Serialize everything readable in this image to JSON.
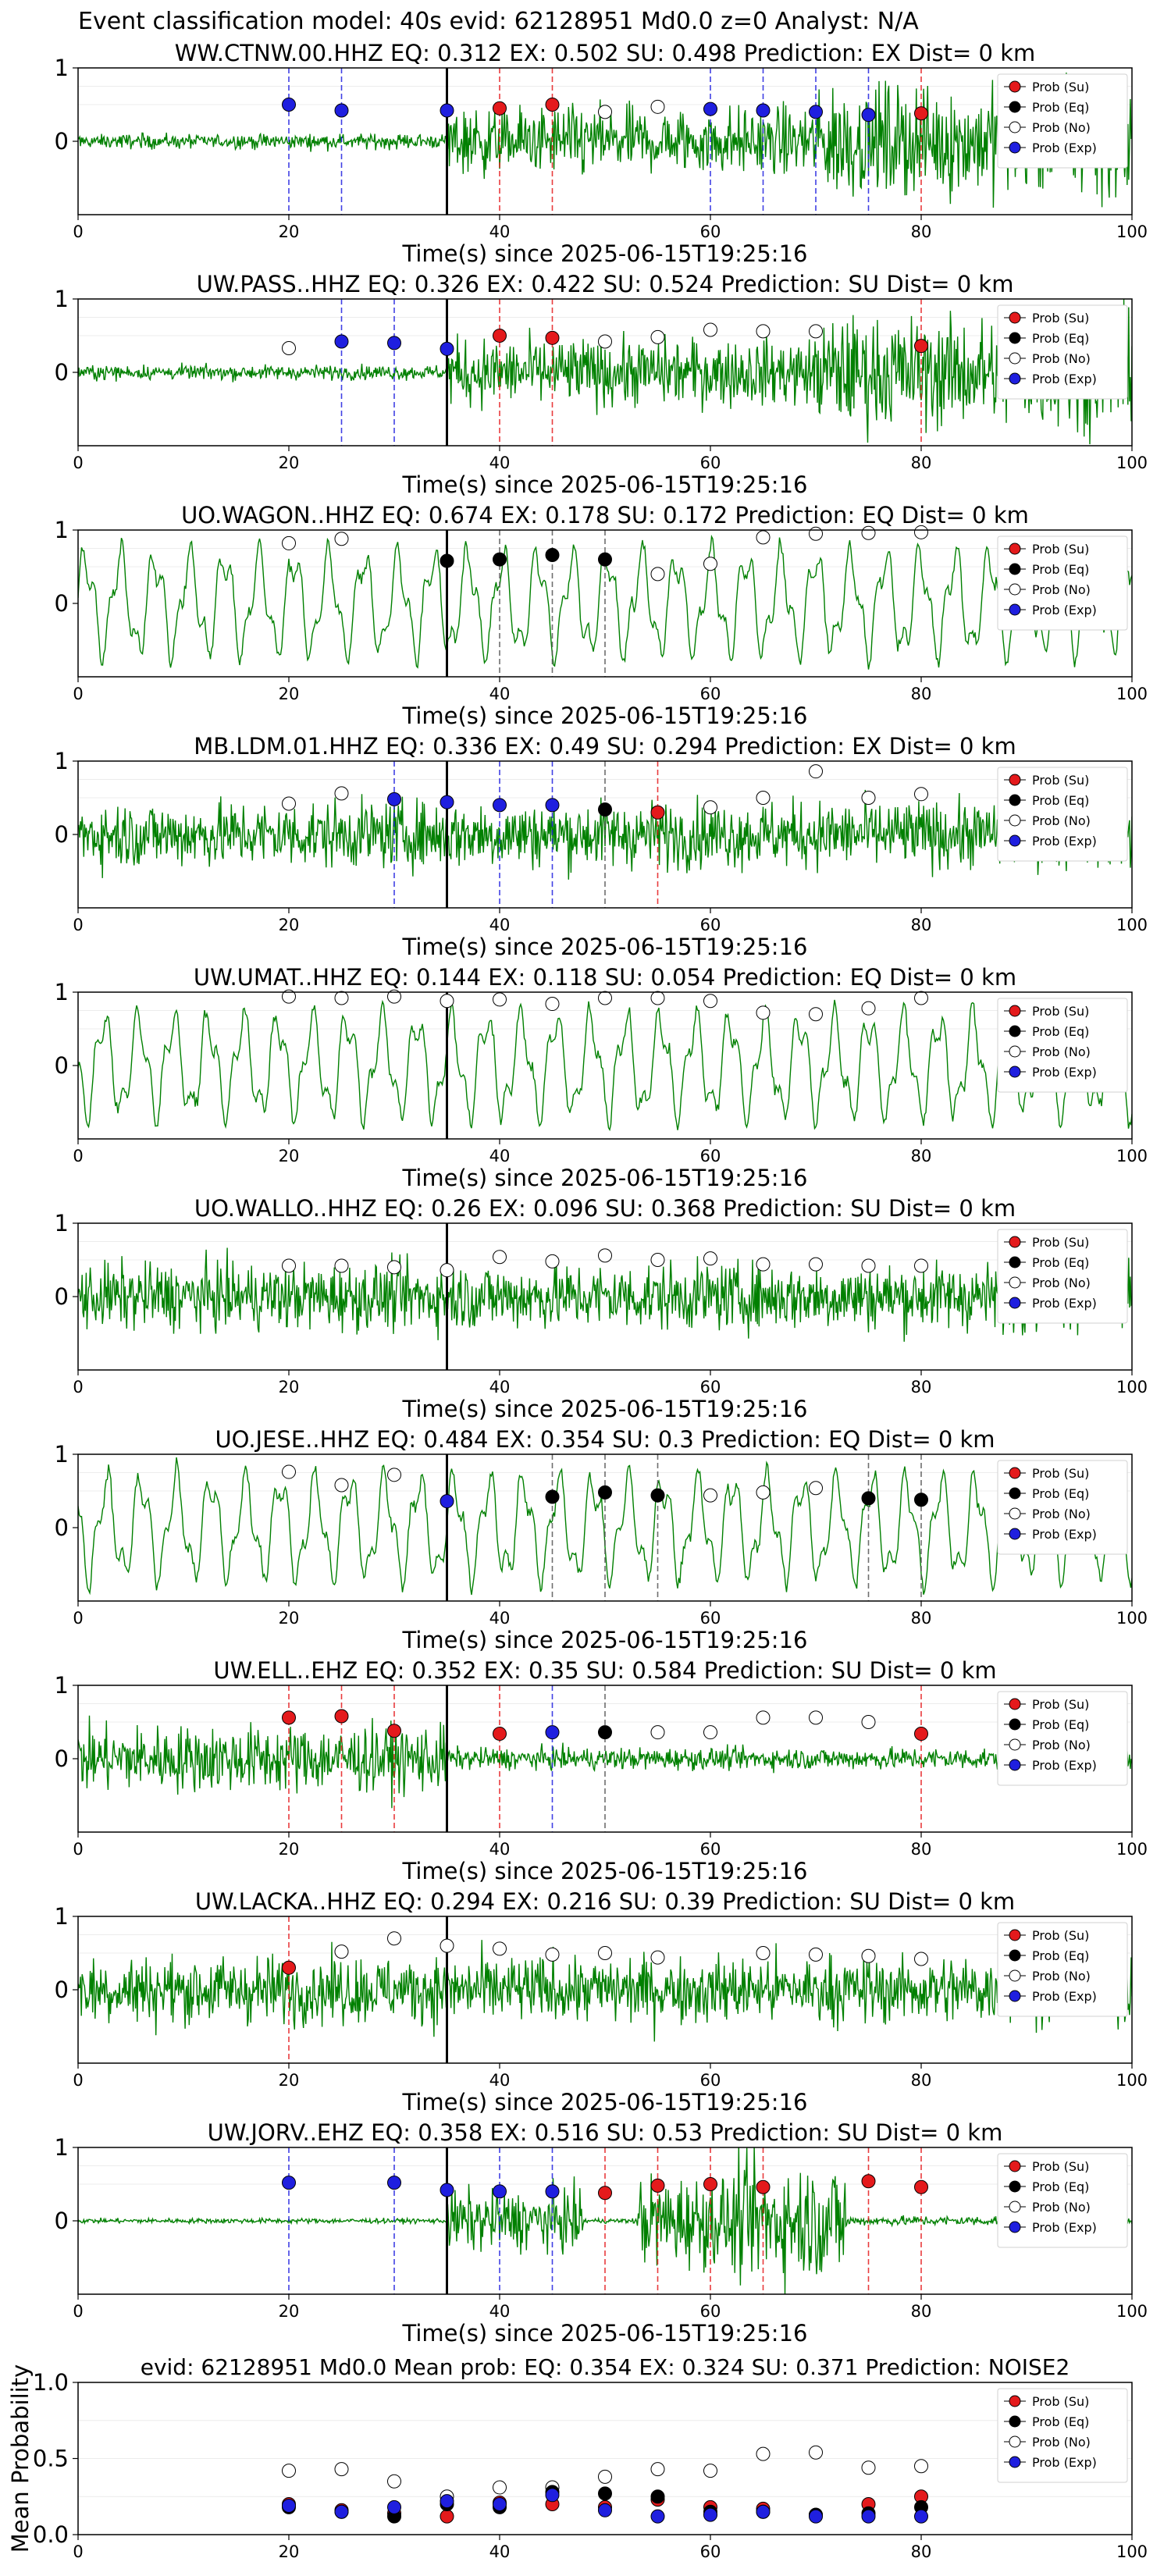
{
  "figure_title": "Event classification model: 40s evid: 62128951 Md0.0 z=0 Analyst: N/A",
  "legend_labels": [
    "Prob (Su)",
    "Prob (Eq)",
    "Prob (No)",
    "Prob (Exp)"
  ],
  "colors": {
    "su": "#e41a1c",
    "eq": "#000000",
    "no": "#ffffff",
    "exp": "#1f1fdf",
    "trace": "#008000"
  },
  "chart_data": [
    {
      "type": "line",
      "title": "WW.CTNW.00.HHZ   EQ: 0.312  EX: 0.502  SU: 0.498   Prediction: EX    Dist= 0 km",
      "xlabel": "Time(s) since 2025-06-15T19:25:16",
      "xlim": [
        0,
        100
      ],
      "ylim": [
        -1,
        1
      ],
      "xticks": [
        "0",
        "20",
        "40",
        "60",
        "80",
        "100"
      ],
      "yticks": [
        "0",
        "1"
      ],
      "trace_style": "noise-burst",
      "p_arrival": 35,
      "points": [
        {
          "x": 20,
          "y": 0.5,
          "cls": "exp"
        },
        {
          "x": 25,
          "y": 0.42,
          "cls": "exp"
        },
        {
          "x": 35,
          "y": 0.42,
          "cls": "exp"
        },
        {
          "x": 40,
          "y": 0.45,
          "cls": "su"
        },
        {
          "x": 45,
          "y": 0.5,
          "cls": "su"
        },
        {
          "x": 50,
          "y": 0.4,
          "cls": "no"
        },
        {
          "x": 55,
          "y": 0.47,
          "cls": "no"
        },
        {
          "x": 60,
          "y": 0.44,
          "cls": "exp"
        },
        {
          "x": 65,
          "y": 0.42,
          "cls": "exp"
        },
        {
          "x": 70,
          "y": 0.4,
          "cls": "exp"
        },
        {
          "x": 75,
          "y": 0.36,
          "cls": "exp"
        },
        {
          "x": 80,
          "y": 0.38,
          "cls": "su"
        }
      ]
    },
    {
      "type": "line",
      "title": "UW.PASS..HHZ   EQ: 0.326  EX: 0.422  SU: 0.524   Prediction: SU    Dist= 0 km",
      "xlabel": "Time(s) since 2025-06-15T19:25:16",
      "xlim": [
        0,
        100
      ],
      "ylim": [
        -1,
        1
      ],
      "xticks": [
        "0",
        "20",
        "40",
        "60",
        "80",
        "100"
      ],
      "yticks": [
        "0",
        "1"
      ],
      "trace_style": "noise-burst",
      "p_arrival": 35,
      "points": [
        {
          "x": 20,
          "y": 0.33,
          "cls": "no"
        },
        {
          "x": 25,
          "y": 0.42,
          "cls": "exp"
        },
        {
          "x": 30,
          "y": 0.4,
          "cls": "exp"
        },
        {
          "x": 35,
          "y": 0.32,
          "cls": "exp"
        },
        {
          "x": 40,
          "y": 0.5,
          "cls": "su"
        },
        {
          "x": 45,
          "y": 0.47,
          "cls": "su"
        },
        {
          "x": 50,
          "y": 0.42,
          "cls": "no"
        },
        {
          "x": 55,
          "y": 0.48,
          "cls": "no"
        },
        {
          "x": 60,
          "y": 0.58,
          "cls": "no"
        },
        {
          "x": 65,
          "y": 0.56,
          "cls": "no"
        },
        {
          "x": 70,
          "y": 0.56,
          "cls": "no"
        },
        {
          "x": 80,
          "y": 0.36,
          "cls": "su"
        }
      ]
    },
    {
      "type": "line",
      "title": "UO.WAGON..HHZ   EQ: 0.674  EX: 0.178  SU: 0.172   Prediction: EQ    Dist= 0 km",
      "xlabel": "Time(s) since 2025-06-15T19:25:16",
      "xlim": [
        0,
        100
      ],
      "ylim": [
        -1,
        1
      ],
      "xticks": [
        "0",
        "20",
        "40",
        "60",
        "80",
        "100"
      ],
      "yticks": [
        "0",
        "1"
      ],
      "trace_style": "oscillation",
      "p_arrival": 35,
      "points": [
        {
          "x": 20,
          "y": 0.82,
          "cls": "no"
        },
        {
          "x": 25,
          "y": 0.88,
          "cls": "no"
        },
        {
          "x": 35,
          "y": 0.58,
          "cls": "eq"
        },
        {
          "x": 40,
          "y": 0.6,
          "cls": "eq"
        },
        {
          "x": 45,
          "y": 0.66,
          "cls": "eq"
        },
        {
          "x": 50,
          "y": 0.6,
          "cls": "eq"
        },
        {
          "x": 55,
          "y": 0.4,
          "cls": "no"
        },
        {
          "x": 60,
          "y": 0.54,
          "cls": "no"
        },
        {
          "x": 65,
          "y": 0.9,
          "cls": "no"
        },
        {
          "x": 70,
          "y": 0.95,
          "cls": "no"
        },
        {
          "x": 75,
          "y": 0.96,
          "cls": "no"
        },
        {
          "x": 80,
          "y": 0.97,
          "cls": "no"
        }
      ]
    },
    {
      "type": "line",
      "title": "MB.LDM.01.HHZ   EQ: 0.336  EX: 0.49  SU: 0.294   Prediction: EX    Dist= 0 km",
      "xlabel": "Time(s) since 2025-06-15T19:25:16",
      "xlim": [
        0,
        100
      ],
      "ylim": [
        -1,
        1
      ],
      "xticks": [
        "0",
        "20",
        "40",
        "60",
        "80",
        "100"
      ],
      "yticks": [
        "0",
        "1"
      ],
      "trace_style": "noise-dense",
      "p_arrival": 35,
      "points": [
        {
          "x": 20,
          "y": 0.42,
          "cls": "no"
        },
        {
          "x": 25,
          "y": 0.56,
          "cls": "no"
        },
        {
          "x": 30,
          "y": 0.48,
          "cls": "exp"
        },
        {
          "x": 35,
          "y": 0.44,
          "cls": "exp"
        },
        {
          "x": 40,
          "y": 0.4,
          "cls": "exp"
        },
        {
          "x": 45,
          "y": 0.4,
          "cls": "exp"
        },
        {
          "x": 50,
          "y": 0.34,
          "cls": "eq"
        },
        {
          "x": 55,
          "y": 0.3,
          "cls": "su"
        },
        {
          "x": 60,
          "y": 0.37,
          "cls": "no"
        },
        {
          "x": 65,
          "y": 0.5,
          "cls": "no"
        },
        {
          "x": 70,
          "y": 0.86,
          "cls": "no"
        },
        {
          "x": 75,
          "y": 0.5,
          "cls": "no"
        },
        {
          "x": 80,
          "y": 0.55,
          "cls": "no"
        }
      ]
    },
    {
      "type": "line",
      "title": "UW.UMAT..HHZ   EQ: 0.144  EX: 0.118  SU: 0.054   Prediction: EQ    Dist= 0 km",
      "xlabel": "Time(s) since 2025-06-15T19:25:16",
      "xlim": [
        0,
        100
      ],
      "ylim": [
        -1,
        1
      ],
      "xticks": [
        "0",
        "20",
        "40",
        "60",
        "80",
        "100"
      ],
      "yticks": [
        "0",
        "1"
      ],
      "trace_style": "oscillation",
      "p_arrival": 35,
      "points": [
        {
          "x": 20,
          "y": 0.94,
          "cls": "no"
        },
        {
          "x": 25,
          "y": 0.92,
          "cls": "no"
        },
        {
          "x": 30,
          "y": 0.94,
          "cls": "no"
        },
        {
          "x": 35,
          "y": 0.88,
          "cls": "no"
        },
        {
          "x": 40,
          "y": 0.9,
          "cls": "no"
        },
        {
          "x": 45,
          "y": 0.84,
          "cls": "no"
        },
        {
          "x": 50,
          "y": 0.92,
          "cls": "no"
        },
        {
          "x": 55,
          "y": 0.92,
          "cls": "no"
        },
        {
          "x": 60,
          "y": 0.88,
          "cls": "no"
        },
        {
          "x": 65,
          "y": 0.72,
          "cls": "no"
        },
        {
          "x": 70,
          "y": 0.7,
          "cls": "no"
        },
        {
          "x": 75,
          "y": 0.78,
          "cls": "no"
        },
        {
          "x": 80,
          "y": 0.92,
          "cls": "no"
        }
      ]
    },
    {
      "type": "line",
      "title": "UO.WALLO..HHZ   EQ: 0.26  EX: 0.096  SU: 0.368   Prediction: SU    Dist= 0 km",
      "xlabel": "Time(s) since 2025-06-15T19:25:16",
      "xlim": [
        0,
        100
      ],
      "ylim": [
        -1,
        1
      ],
      "xticks": [
        "0",
        "20",
        "40",
        "60",
        "80",
        "100"
      ],
      "yticks": [
        "0",
        "1"
      ],
      "trace_style": "noise-dense",
      "p_arrival": 35,
      "points": [
        {
          "x": 20,
          "y": 0.42,
          "cls": "no"
        },
        {
          "x": 25,
          "y": 0.42,
          "cls": "no"
        },
        {
          "x": 30,
          "y": 0.4,
          "cls": "no"
        },
        {
          "x": 35,
          "y": 0.36,
          "cls": "no"
        },
        {
          "x": 40,
          "y": 0.54,
          "cls": "no"
        },
        {
          "x": 45,
          "y": 0.48,
          "cls": "no"
        },
        {
          "x": 50,
          "y": 0.56,
          "cls": "no"
        },
        {
          "x": 55,
          "y": 0.5,
          "cls": "no"
        },
        {
          "x": 60,
          "y": 0.52,
          "cls": "no"
        },
        {
          "x": 65,
          "y": 0.44,
          "cls": "no"
        },
        {
          "x": 70,
          "y": 0.44,
          "cls": "no"
        },
        {
          "x": 75,
          "y": 0.42,
          "cls": "no"
        },
        {
          "x": 80,
          "y": 0.42,
          "cls": "no"
        }
      ]
    },
    {
      "type": "line",
      "title": "UO.JESE..HHZ   EQ: 0.484  EX: 0.354  SU: 0.3   Prediction: EQ    Dist= 0 km",
      "xlabel": "Time(s) since 2025-06-15T19:25:16",
      "xlim": [
        0,
        100
      ],
      "ylim": [
        -1,
        1
      ],
      "xticks": [
        "0",
        "20",
        "40",
        "60",
        "80",
        "100"
      ],
      "yticks": [
        "0",
        "1"
      ],
      "trace_style": "oscillation",
      "p_arrival": 35,
      "points": [
        {
          "x": 20,
          "y": 0.76,
          "cls": "no"
        },
        {
          "x": 25,
          "y": 0.58,
          "cls": "no"
        },
        {
          "x": 30,
          "y": 0.72,
          "cls": "no"
        },
        {
          "x": 35,
          "y": 0.36,
          "cls": "exp"
        },
        {
          "x": 45,
          "y": 0.42,
          "cls": "eq"
        },
        {
          "x": 50,
          "y": 0.48,
          "cls": "eq"
        },
        {
          "x": 55,
          "y": 0.44,
          "cls": "eq"
        },
        {
          "x": 60,
          "y": 0.44,
          "cls": "no"
        },
        {
          "x": 65,
          "y": 0.48,
          "cls": "no"
        },
        {
          "x": 70,
          "y": 0.54,
          "cls": "no"
        },
        {
          "x": 75,
          "y": 0.4,
          "cls": "eq"
        },
        {
          "x": 80,
          "y": 0.38,
          "cls": "eq"
        }
      ]
    },
    {
      "type": "line",
      "title": "UW.ELL..EHZ   EQ: 0.352  EX: 0.35  SU: 0.584   Prediction: SU    Dist= 0 km",
      "xlabel": "Time(s) since 2025-06-15T19:25:16",
      "xlim": [
        0,
        100
      ],
      "ylim": [
        -1,
        1
      ],
      "xticks": [
        "0",
        "20",
        "40",
        "60",
        "80",
        "100"
      ],
      "yticks": [
        "0",
        "1"
      ],
      "trace_style": "noise-front",
      "p_arrival": 35,
      "points": [
        {
          "x": 20,
          "y": 0.56,
          "cls": "su"
        },
        {
          "x": 25,
          "y": 0.58,
          "cls": "su"
        },
        {
          "x": 30,
          "y": 0.38,
          "cls": "su"
        },
        {
          "x": 40,
          "y": 0.34,
          "cls": "su"
        },
        {
          "x": 45,
          "y": 0.36,
          "cls": "exp"
        },
        {
          "x": 50,
          "y": 0.36,
          "cls": "eq"
        },
        {
          "x": 55,
          "y": 0.36,
          "cls": "no"
        },
        {
          "x": 60,
          "y": 0.36,
          "cls": "no"
        },
        {
          "x": 65,
          "y": 0.56,
          "cls": "no"
        },
        {
          "x": 70,
          "y": 0.56,
          "cls": "no"
        },
        {
          "x": 75,
          "y": 0.5,
          "cls": "no"
        },
        {
          "x": 80,
          "y": 0.34,
          "cls": "su"
        }
      ]
    },
    {
      "type": "line",
      "title": "UW.LACKA..HHZ   EQ: 0.294  EX: 0.216  SU: 0.39   Prediction: SU    Dist= 0 km",
      "xlabel": "Time(s) since 2025-06-15T19:25:16",
      "xlim": [
        0,
        100
      ],
      "ylim": [
        -1,
        1
      ],
      "xticks": [
        "0",
        "20",
        "40",
        "60",
        "80",
        "100"
      ],
      "yticks": [
        "0",
        "1"
      ],
      "trace_style": "noise-dense",
      "p_arrival": 35,
      "points": [
        {
          "x": 20,
          "y": 0.3,
          "cls": "su"
        },
        {
          "x": 25,
          "y": 0.52,
          "cls": "no"
        },
        {
          "x": 30,
          "y": 0.7,
          "cls": "no"
        },
        {
          "x": 35,
          "y": 0.6,
          "cls": "no"
        },
        {
          "x": 40,
          "y": 0.56,
          "cls": "no"
        },
        {
          "x": 45,
          "y": 0.48,
          "cls": "no"
        },
        {
          "x": 50,
          "y": 0.5,
          "cls": "no"
        },
        {
          "x": 55,
          "y": 0.44,
          "cls": "no"
        },
        {
          "x": 65,
          "y": 0.5,
          "cls": "no"
        },
        {
          "x": 70,
          "y": 0.48,
          "cls": "no"
        },
        {
          "x": 75,
          "y": 0.46,
          "cls": "no"
        },
        {
          "x": 80,
          "y": 0.42,
          "cls": "no"
        }
      ]
    },
    {
      "type": "line",
      "title": "UW.JORV..EHZ   EQ: 0.358  EX: 0.516  SU: 0.53   Prediction: SU    Dist= 0 km",
      "xlabel": "Time(s) since 2025-06-15T19:25:16",
      "xlim": [
        0,
        100
      ],
      "ylim": [
        -1,
        1
      ],
      "xticks": [
        "0",
        "20",
        "40",
        "60",
        "80",
        "100"
      ],
      "yticks": [
        "0",
        "1"
      ],
      "trace_style": "bursts",
      "p_arrival": 35,
      "points": [
        {
          "x": 20,
          "y": 0.52,
          "cls": "exp"
        },
        {
          "x": 30,
          "y": 0.52,
          "cls": "exp"
        },
        {
          "x": 35,
          "y": 0.42,
          "cls": "exp"
        },
        {
          "x": 40,
          "y": 0.4,
          "cls": "exp"
        },
        {
          "x": 45,
          "y": 0.4,
          "cls": "exp"
        },
        {
          "x": 50,
          "y": 0.38,
          "cls": "su"
        },
        {
          "x": 55,
          "y": 0.48,
          "cls": "su"
        },
        {
          "x": 60,
          "y": 0.5,
          "cls": "su"
        },
        {
          "x": 65,
          "y": 0.46,
          "cls": "su"
        },
        {
          "x": 75,
          "y": 0.54,
          "cls": "su"
        },
        {
          "x": 80,
          "y": 0.46,
          "cls": "su"
        }
      ]
    },
    {
      "type": "scatter",
      "title": "evid: 62128951  Md0.0   Mean prob:   EQ: 0.354  EX: 0.324  SU: 0.371   Prediction: NOISE2",
      "ylabel": "Mean Probability",
      "xlim": [
        0,
        100
      ],
      "ylim": [
        0,
        1
      ],
      "xticks": [
        "0",
        "20",
        "40",
        "60",
        "80",
        "100"
      ],
      "yticks": [
        "0.0",
        "0.5",
        "1.0"
      ],
      "x": [
        20,
        25,
        30,
        35,
        40,
        45,
        50,
        55,
        60,
        65,
        70,
        75,
        80
      ],
      "series": [
        {
          "cls": "no",
          "values": [
            0.42,
            0.43,
            0.35,
            0.25,
            0.31,
            0.31,
            0.38,
            0.43,
            0.42,
            0.53,
            0.54,
            0.44,
            0.45
          ]
        },
        {
          "cls": "su",
          "values": [
            0.2,
            0.16,
            0.14,
            0.12,
            0.21,
            0.2,
            0.18,
            0.23,
            0.18,
            0.17,
            0.13,
            0.2,
            0.25
          ]
        },
        {
          "cls": "eq",
          "values": [
            0.18,
            0.15,
            0.12,
            0.2,
            0.18,
            0.28,
            0.27,
            0.25,
            0.15,
            0.15,
            0.13,
            0.14,
            0.18
          ]
        },
        {
          "cls": "exp",
          "values": [
            0.19,
            0.15,
            0.18,
            0.22,
            0.2,
            0.26,
            0.16,
            0.12,
            0.13,
            0.15,
            0.12,
            0.12,
            0.12
          ]
        }
      ]
    }
  ]
}
